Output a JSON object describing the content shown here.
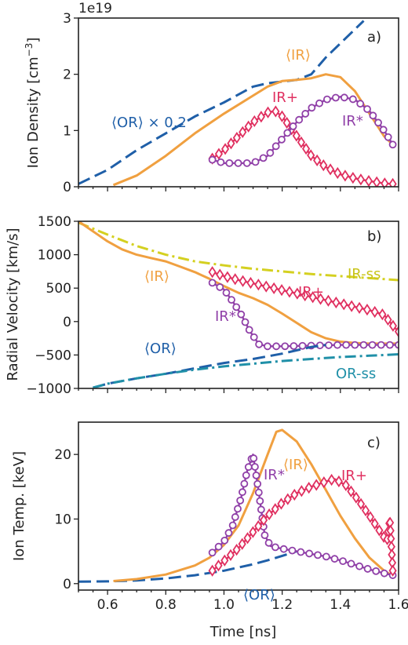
{
  "chart_data": [
    {
      "panel": "a)",
      "type": "line",
      "ylabel": "Ion Density [cm$^{-3}$]",
      "ylabel_main": "Ion Density [cm",
      "ylabel_sup": "−3",
      "ylabel_end": "]",
      "exponent_label": "1e19",
      "xlim": [
        0.5,
        1.6
      ],
      "ylim": [
        0,
        3
      ],
      "yticks": [
        0,
        1,
        2,
        3
      ],
      "ytick_labels": [
        "0",
        "1",
        "2",
        "3"
      ],
      "xticks": [
        0.6,
        0.8,
        1.0,
        1.2,
        1.4,
        1.6
      ],
      "series": [
        {
          "name": "⟨OR⟩ × 0.2",
          "color": "#1f5fa8",
          "style": "dashed",
          "x": [
            0.5,
            0.6,
            0.7,
            0.8,
            0.9,
            1.0,
            1.1,
            1.15,
            1.2,
            1.25,
            1.3,
            1.35,
            1.4,
            1.45,
            1.48
          ],
          "y": [
            0.05,
            0.3,
            0.65,
            0.95,
            1.25,
            1.5,
            1.78,
            1.84,
            1.87,
            1.9,
            2.0,
            2.3,
            2.55,
            2.8,
            2.95
          ]
        },
        {
          "name": "⟨IR⟩",
          "color": "#f0a040",
          "style": "solid",
          "x": [
            0.62,
            0.7,
            0.8,
            0.9,
            1.0,
            1.1,
            1.15,
            1.2,
            1.25,
            1.3,
            1.35,
            1.4,
            1.45,
            1.5,
            1.55,
            1.58
          ],
          "y": [
            0.03,
            0.2,
            0.55,
            0.95,
            1.3,
            1.62,
            1.78,
            1.88,
            1.9,
            1.93,
            2.0,
            1.95,
            1.7,
            1.3,
            0.9,
            0.75
          ]
        },
        {
          "name": "IR+",
          "color": "#e03060",
          "style": "diamond",
          "x": [
            0.96,
            1.0,
            1.05,
            1.1,
            1.15,
            1.175,
            1.2,
            1.25,
            1.3,
            1.35,
            1.4,
            1.45,
            1.5,
            1.55,
            1.58
          ],
          "y": [
            0.5,
            0.65,
            0.9,
            1.15,
            1.32,
            1.35,
            1.25,
            0.9,
            0.55,
            0.35,
            0.22,
            0.15,
            0.1,
            0.06,
            0.05
          ]
        },
        {
          "name": "IR*",
          "color": "#9040a8",
          "style": "circle",
          "x": [
            0.96,
            1.0,
            1.05,
            1.1,
            1.15,
            1.2,
            1.25,
            1.3,
            1.35,
            1.4,
            1.45,
            1.5,
            1.55,
            1.58
          ],
          "y": [
            0.48,
            0.42,
            0.42,
            0.42,
            0.55,
            0.85,
            1.15,
            1.4,
            1.55,
            1.6,
            1.55,
            1.35,
            1.0,
            0.75
          ]
        }
      ]
    },
    {
      "panel": "b)",
      "type": "line",
      "ylabel": "Radial Velocity [km/s]",
      "xlim": [
        0.5,
        1.6
      ],
      "ylim": [
        -1000,
        1500
      ],
      "yticks": [
        -1000,
        -500,
        0,
        500,
        1000,
        1500
      ],
      "ytick_labels": [
        "−1000",
        "−500",
        "0",
        "500",
        "1000",
        "1500"
      ],
      "xticks": [
        0.6,
        0.8,
        1.0,
        1.2,
        1.4,
        1.6
      ],
      "series": [
        {
          "name": "IR-ss",
          "color": "#d4d020",
          "style": "dashdot",
          "x": [
            0.5,
            0.6,
            0.7,
            0.8,
            0.9,
            1.0,
            1.1,
            1.2,
            1.3,
            1.4,
            1.5,
            1.6
          ],
          "y": [
            1480,
            1300,
            1130,
            1000,
            900,
            840,
            790,
            750,
            710,
            680,
            650,
            620
          ]
        },
        {
          "name": "⟨IR⟩",
          "color": "#f0a040",
          "style": "solid",
          "x": [
            0.5,
            0.55,
            0.6,
            0.65,
            0.7,
            0.75,
            0.8,
            0.85,
            0.9,
            0.95,
            1.0,
            1.05,
            1.1,
            1.15,
            1.2,
            1.25,
            1.3,
            1.35,
            1.4,
            1.45,
            1.5,
            1.55,
            1.6
          ],
          "y": [
            1500,
            1350,
            1200,
            1080,
            1000,
            950,
            900,
            820,
            740,
            640,
            530,
            430,
            350,
            250,
            120,
            -20,
            -160,
            -250,
            -300,
            -320,
            -330,
            -330,
            -330
          ]
        },
        {
          "name": "IR+",
          "color": "#e03060",
          "style": "diamond",
          "x": [
            0.96,
            1.0,
            1.05,
            1.1,
            1.15,
            1.2,
            1.25,
            1.3,
            1.35,
            1.4,
            1.45,
            1.5,
            1.55,
            1.58,
            1.6
          ],
          "y": [
            740,
            680,
            620,
            570,
            520,
            470,
            420,
            370,
            320,
            270,
            220,
            170,
            100,
            -60,
            -150
          ]
        },
        {
          "name": "IR*",
          "color": "#9040a8",
          "style": "circle",
          "x": [
            0.96,
            1.0,
            1.03,
            1.06,
            1.09,
            1.12,
            1.15,
            1.2,
            1.3,
            1.4,
            1.5,
            1.6
          ],
          "y": [
            580,
            480,
            300,
            100,
            -150,
            -340,
            -370,
            -370,
            -360,
            -350,
            -350,
            -350
          ]
        },
        {
          "name": "⟨OR⟩",
          "color": "#1f5fa8",
          "style": "dashed",
          "x": [
            0.55,
            0.6,
            0.7,
            0.8,
            0.9,
            1.0,
            1.1,
            1.2,
            1.3,
            1.35
          ],
          "y": [
            -990,
            -930,
            -850,
            -780,
            -700,
            -620,
            -560,
            -480,
            -380,
            -350
          ]
        },
        {
          "name": "OR-ss",
          "color": "#2090a8",
          "style": "dashdot",
          "x": [
            0.55,
            0.6,
            0.7,
            0.8,
            0.9,
            1.0,
            1.1,
            1.2,
            1.3,
            1.4,
            1.5,
            1.6
          ],
          "y": [
            -990,
            -930,
            -850,
            -780,
            -720,
            -670,
            -630,
            -590,
            -560,
            -530,
            -510,
            -490
          ]
        }
      ]
    },
    {
      "panel": "c)",
      "type": "line",
      "ylabel": "Ion Temp. [keV]",
      "xlabel": "Time [ns]",
      "xlim": [
        0.5,
        1.6
      ],
      "ylim": [
        -1,
        25
      ],
      "yticks": [
        0,
        10,
        20
      ],
      "ytick_labels": [
        "0",
        "10",
        "20"
      ],
      "xticks": [
        0.6,
        0.8,
        1.0,
        1.2,
        1.4,
        1.6
      ],
      "xtick_labels": [
        "0.6",
        "0.8",
        "1.0",
        "1.2",
        "1.4",
        "1.6"
      ],
      "series": [
        {
          "name": "⟨OR⟩",
          "color": "#1f5fa8",
          "style": "dashed",
          "x": [
            0.5,
            0.6,
            0.7,
            0.8,
            0.9,
            1.0,
            1.05,
            1.1,
            1.15,
            1.2,
            1.25
          ],
          "y": [
            0.3,
            0.35,
            0.5,
            0.8,
            1.3,
            2.0,
            2.5,
            3.0,
            3.6,
            4.3,
            5.0
          ]
        },
        {
          "name": "⟨IR⟩",
          "color": "#f0a040",
          "style": "solid",
          "x": [
            0.62,
            0.7,
            0.8,
            0.9,
            0.95,
            1.0,
            1.05,
            1.1,
            1.15,
            1.18,
            1.2,
            1.25,
            1.3,
            1.35,
            1.4,
            1.45,
            1.5,
            1.55,
            1.58
          ],
          "y": [
            0.4,
            0.7,
            1.4,
            2.8,
            4.0,
            6.0,
            9.0,
            14.0,
            20.0,
            23.5,
            23.8,
            22.0,
            18.5,
            14.5,
            10.5,
            7.0,
            4.0,
            2.0,
            1.2
          ]
        },
        {
          "name": "IR*",
          "color": "#9040a8",
          "style": "circle",
          "x": [
            0.96,
            1.0,
            1.03,
            1.06,
            1.08,
            1.1,
            1.12,
            1.14,
            1.16,
            1.2,
            1.25,
            1.3,
            1.35,
            1.4,
            1.45,
            1.5,
            1.55,
            1.58
          ],
          "y": [
            4.8,
            6.5,
            9.0,
            13.5,
            17.5,
            20.0,
            14.0,
            7.5,
            5.8,
            5.4,
            5.0,
            4.6,
            4.2,
            3.6,
            2.9,
            2.2,
            1.6,
            1.3
          ]
        },
        {
          "name": "IR+",
          "color": "#e03060",
          "style": "diamond",
          "x": [
            0.96,
            1.0,
            1.05,
            1.1,
            1.15,
            1.2,
            1.25,
            1.3,
            1.35,
            1.38,
            1.42,
            1.46,
            1.5,
            1.53,
            1.56,
            1.57,
            1.58
          ],
          "y": [
            2.0,
            3.5,
            5.5,
            8.0,
            10.5,
            12.5,
            14.0,
            15.0,
            15.8,
            16.2,
            15.2,
            13.0,
            10.5,
            8.5,
            6.5,
            10.0,
            2.0
          ]
        }
      ]
    }
  ]
}
